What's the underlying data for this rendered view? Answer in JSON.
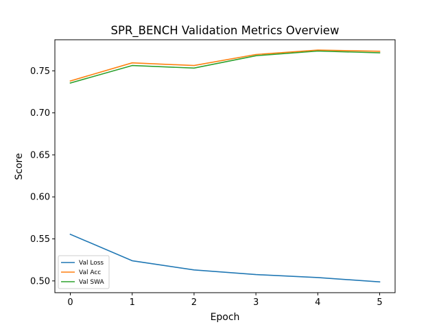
{
  "chart_data": {
    "type": "line",
    "title": "SPR_BENCH Validation Metrics Overview",
    "xlabel": "Epoch",
    "ylabel": "Score",
    "x": [
      0,
      1,
      2,
      3,
      4,
      5
    ],
    "xlim": [
      -0.25,
      5.25
    ],
    "ylim": [
      0.486,
      0.787
    ],
    "xticks": [
      "0",
      "1",
      "2",
      "3",
      "4",
      "5"
    ],
    "yticks": [
      "0.50",
      "0.55",
      "0.60",
      "0.65",
      "0.70",
      "0.75"
    ],
    "legend_position": "lower-left",
    "grid": false,
    "series": [
      {
        "name": "Val Loss",
        "color": "#1f77b4",
        "values": [
          0.5555,
          0.524,
          0.5131,
          0.5075,
          0.504,
          0.4988
        ]
      },
      {
        "name": "Val Acc",
        "color": "#ff7f0e",
        "values": [
          0.738,
          0.7595,
          0.7563,
          0.7695,
          0.7747,
          0.7733
        ]
      },
      {
        "name": "Val SWA",
        "color": "#2ca02c",
        "values": [
          0.7355,
          0.7563,
          0.7533,
          0.768,
          0.7735,
          0.7715
        ]
      }
    ]
  }
}
